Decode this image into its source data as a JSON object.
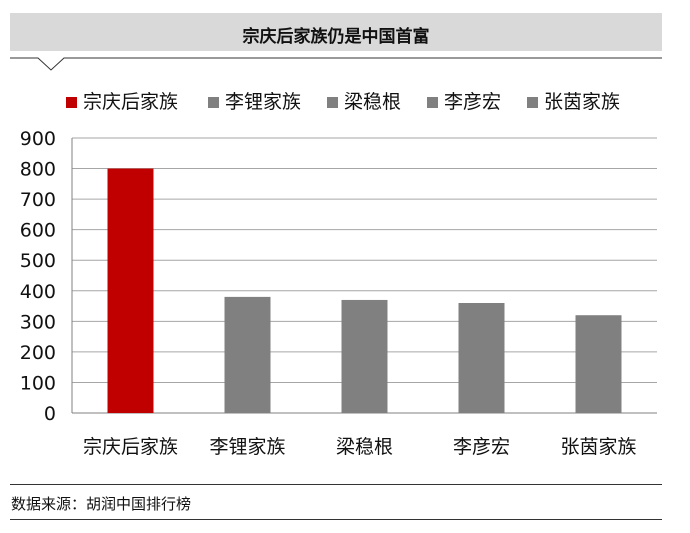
{
  "title": "宗庆后家族仍是中国首富",
  "source": "数据来源：胡润中国排行榜",
  "colors": {
    "highlight": "#c00000",
    "default": "#808080",
    "grid": "#a6a6a6",
    "title_band": "#d9d9d9"
  },
  "chart_data": {
    "type": "bar",
    "categories": [
      "宗庆后家族",
      "李锂家族",
      "梁稳根",
      "李彦宏",
      "张茵家族"
    ],
    "values": [
      800,
      380,
      370,
      360,
      320
    ],
    "bar_colors": [
      "#c00000",
      "#808080",
      "#808080",
      "#808080",
      "#808080"
    ],
    "title": "宗庆后家族仍是中国首富",
    "xlabel": "",
    "ylabel": "",
    "ylim": [
      0,
      900
    ],
    "yticks": [
      "0",
      "100",
      "200",
      "300",
      "400",
      "500",
      "600",
      "700",
      "800",
      "900"
    ],
    "grid": true,
    "legend": "top",
    "legend_entries": [
      "宗庆后家族",
      "李锂家族",
      "梁稳根",
      "李彦宏",
      "张茵家族"
    ]
  }
}
